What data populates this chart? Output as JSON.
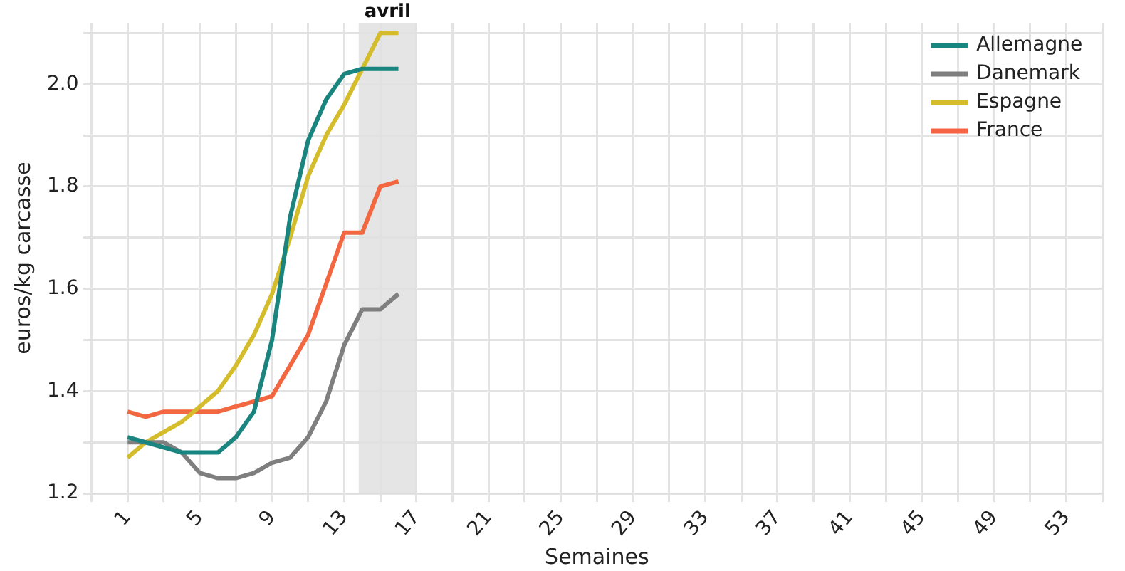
{
  "chart_data": {
    "type": "line",
    "xlabel": "Semaines",
    "ylabel": "euros/kg carcasse",
    "x": [
      1,
      2,
      3,
      4,
      5,
      6,
      7,
      8,
      9,
      10,
      11,
      12,
      13,
      14,
      15,
      16
    ],
    "series": [
      {
        "name": "Allemagne",
        "color": "#1a847f",
        "values": [
          1.31,
          1.3,
          1.29,
          1.28,
          1.28,
          1.28,
          1.31,
          1.36,
          1.5,
          1.74,
          1.89,
          1.97,
          2.02,
          2.03,
          2.03,
          2.03
        ]
      },
      {
        "name": "Danemark",
        "color": "#7f7f7f",
        "values": [
          1.3,
          1.3,
          1.3,
          1.28,
          1.24,
          1.23,
          1.23,
          1.24,
          1.26,
          1.27,
          1.31,
          1.38,
          1.49,
          1.56,
          1.56,
          1.59
        ]
      },
      {
        "name": "Espagne",
        "color": "#d4bc2a",
        "values": [
          1.27,
          1.3,
          1.32,
          1.34,
          1.37,
          1.4,
          1.45,
          1.51,
          1.59,
          1.7,
          1.82,
          1.9,
          1.96,
          2.03,
          2.1,
          2.1
        ]
      },
      {
        "name": "France",
        "color": "#f26640",
        "values": [
          1.36,
          1.35,
          1.36,
          1.36,
          1.36,
          1.36,
          1.37,
          1.38,
          1.39,
          1.45,
          1.51,
          1.61,
          1.71,
          1.71,
          1.8,
          1.81
        ]
      }
    ],
    "xlim": [
      -1,
      55
    ],
    "xticks": [
      {
        "value": -1,
        "label": null
      },
      1,
      {
        "value": 3,
        "label": null
      },
      5,
      {
        "value": 7,
        "label": null
      },
      9,
      {
        "value": 11,
        "label": null
      },
      13,
      {
        "value": 15,
        "label": null
      },
      17,
      {
        "value": 19,
        "label": null
      },
      21,
      {
        "value": 23,
        "label": null
      },
      25,
      {
        "value": 27,
        "label": null
      },
      29,
      {
        "value": 31,
        "label": null
      },
      33,
      {
        "value": 35,
        "label": null
      },
      37,
      {
        "value": 39,
        "label": null
      },
      41,
      {
        "value": 43,
        "label": null
      },
      45,
      {
        "value": 47,
        "label": null
      },
      49,
      {
        "value": 51,
        "label": null
      },
      53,
      {
        "value": 55,
        "label": null
      }
    ],
    "ylim": [
      1.2,
      2.12
    ],
    "yticks": [
      {
        "value": 1.2,
        "label": "1.2"
      },
      {
        "value": 1.3,
        "label": null
      },
      {
        "value": 1.4,
        "label": "1.4"
      },
      {
        "value": 1.5,
        "label": null
      },
      {
        "value": 1.6,
        "label": "1.6"
      },
      {
        "value": 1.7,
        "label": null
      },
      {
        "value": 1.8,
        "label": "1.8"
      },
      {
        "value": 1.9,
        "label": null
      },
      {
        "value": 2.0,
        "label": "2.0"
      },
      {
        "value": 2.1,
        "label": null
      }
    ],
    "bands": [
      {
        "axis": "x",
        "from": 13.8,
        "to": 17,
        "label": "avril",
        "color": "#e0e0e0"
      }
    ],
    "grid": true,
    "legend": "top right",
    "line_style": "solid",
    "marker": "none"
  }
}
